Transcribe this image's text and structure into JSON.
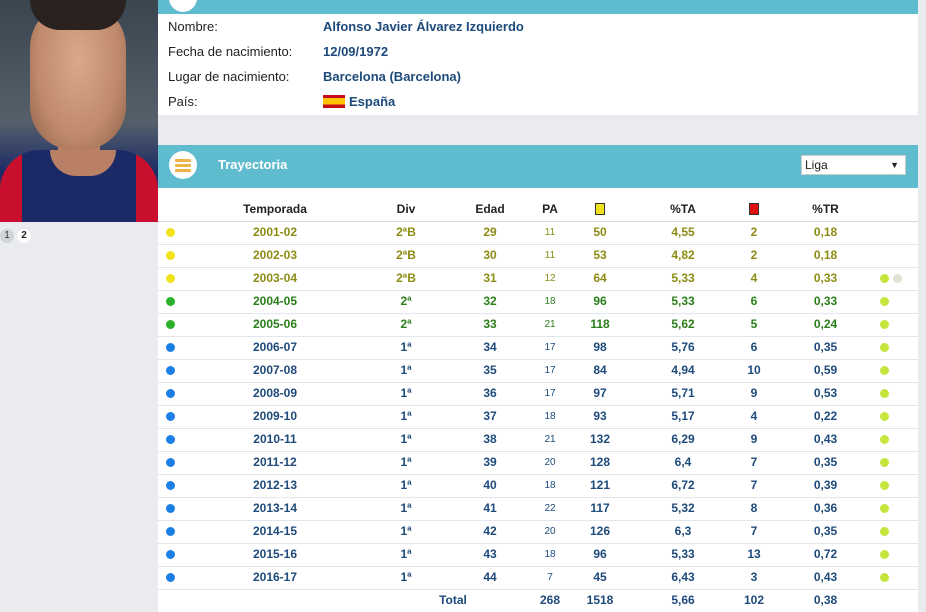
{
  "colors": {
    "accent": "#5fbcce",
    "value": "#1d4a7a",
    "segunda_b": "#8c8c14",
    "segunda": "#2a7f1a",
    "primera": "#1d4a7a"
  },
  "pager": [
    "1",
    "2"
  ],
  "info": {
    "nombre_label": "Nombre:",
    "nombre": "Alfonso Javier Álvarez Izquierdo",
    "fecha_label": "Fecha de nacimiento:",
    "fecha": "12/09/1972",
    "lugar_label": "Lugar de nacimiento:",
    "lugar": "Barcelona (Barcelona)",
    "pais_label": "País:",
    "pais": "España"
  },
  "trayectoria": {
    "title": "Trayectoria",
    "liga_select": "Liga",
    "headers": {
      "temporada": "Temporada",
      "div": "Div",
      "edad": "Edad",
      "pa": "PA",
      "pta": "%TA",
      "ptr": "%TR"
    },
    "rows": [
      {
        "temporada": "2001-02",
        "div": "2ªB",
        "edad": "29",
        "pa": "11",
        "ta": "50",
        "pta": "4,55",
        "tr": "2",
        "ptr": "0,18",
        "tier": "segunda_b",
        "dot": "#f2e21b",
        "extra": 0
      },
      {
        "temporada": "2002-03",
        "div": "2ªB",
        "edad": "30",
        "pa": "11",
        "ta": "53",
        "pta": "4,82",
        "tr": "2",
        "ptr": "0,18",
        "tier": "segunda_b",
        "dot": "#f2e21b",
        "extra": 0
      },
      {
        "temporada": "2003-04",
        "div": "2ªB",
        "edad": "31",
        "pa": "12",
        "ta": "64",
        "pta": "5,33",
        "tr": "4",
        "ptr": "0,33",
        "tier": "segunda_b",
        "dot": "#f2e21b",
        "extra": 2
      },
      {
        "temporada": "2004-05",
        "div": "2ª",
        "edad": "32",
        "pa": "18",
        "ta": "96",
        "pta": "5,33",
        "tr": "6",
        "ptr": "0,33",
        "tier": "segunda",
        "dot": "#2ab02a",
        "extra": 1
      },
      {
        "temporada": "2005-06",
        "div": "2ª",
        "edad": "33",
        "pa": "21",
        "ta": "118",
        "pta": "5,62",
        "tr": "5",
        "ptr": "0,24",
        "tier": "segunda",
        "dot": "#2ab02a",
        "extra": 1
      },
      {
        "temporada": "2006-07",
        "div": "1ª",
        "edad": "34",
        "pa": "17",
        "ta": "98",
        "pta": "5,76",
        "tr": "6",
        "ptr": "0,35",
        "tier": "primera",
        "dot": "#1c7fe6",
        "extra": 1
      },
      {
        "temporada": "2007-08",
        "div": "1ª",
        "edad": "35",
        "pa": "17",
        "ta": "84",
        "pta": "4,94",
        "tr": "10",
        "ptr": "0,59",
        "tier": "primera",
        "dot": "#1c7fe6",
        "extra": 1
      },
      {
        "temporada": "2008-09",
        "div": "1ª",
        "edad": "36",
        "pa": "17",
        "ta": "97",
        "pta": "5,71",
        "tr": "9",
        "ptr": "0,53",
        "tier": "primera",
        "dot": "#1c7fe6",
        "extra": 1
      },
      {
        "temporada": "2009-10",
        "div": "1ª",
        "edad": "37",
        "pa": "18",
        "ta": "93",
        "pta": "5,17",
        "tr": "4",
        "ptr": "0,22",
        "tier": "primera",
        "dot": "#1c7fe6",
        "extra": 1
      },
      {
        "temporada": "2010-11",
        "div": "1ª",
        "edad": "38",
        "pa": "21",
        "ta": "132",
        "pta": "6,29",
        "tr": "9",
        "ptr": "0,43",
        "tier": "primera",
        "dot": "#1c7fe6",
        "extra": 1
      },
      {
        "temporada": "2011-12",
        "div": "1ª",
        "edad": "39",
        "pa": "20",
        "ta": "128",
        "pta": "6,4",
        "tr": "7",
        "ptr": "0,35",
        "tier": "primera",
        "dot": "#1c7fe6",
        "extra": 1
      },
      {
        "temporada": "2012-13",
        "div": "1ª",
        "edad": "40",
        "pa": "18",
        "ta": "121",
        "pta": "6,72",
        "tr": "7",
        "ptr": "0,39",
        "tier": "primera",
        "dot": "#1c7fe6",
        "extra": 1
      },
      {
        "temporada": "2013-14",
        "div": "1ª",
        "edad": "41",
        "pa": "22",
        "ta": "117",
        "pta": "5,32",
        "tr": "8",
        "ptr": "0,36",
        "tier": "primera",
        "dot": "#1c7fe6",
        "extra": 1
      },
      {
        "temporada": "2014-15",
        "div": "1ª",
        "edad": "42",
        "pa": "20",
        "ta": "126",
        "pta": "6,3",
        "tr": "7",
        "ptr": "0,35",
        "tier": "primera",
        "dot": "#1c7fe6",
        "extra": 1
      },
      {
        "temporada": "2015-16",
        "div": "1ª",
        "edad": "43",
        "pa": "18",
        "ta": "96",
        "pta": "5,33",
        "tr": "13",
        "ptr": "0,72",
        "tier": "primera",
        "dot": "#1c7fe6",
        "extra": 1
      },
      {
        "temporada": "2016-17",
        "div": "1ª",
        "edad": "44",
        "pa": "7",
        "ta": "45",
        "pta": "6,43",
        "tr": "3",
        "ptr": "0,43",
        "tier": "primera",
        "dot": "#1c7fe6",
        "extra": 1
      }
    ],
    "total": {
      "label": "Total",
      "pa": "268",
      "ta": "1518",
      "pta": "5,66",
      "tr": "102",
      "ptr": "0,38"
    }
  }
}
